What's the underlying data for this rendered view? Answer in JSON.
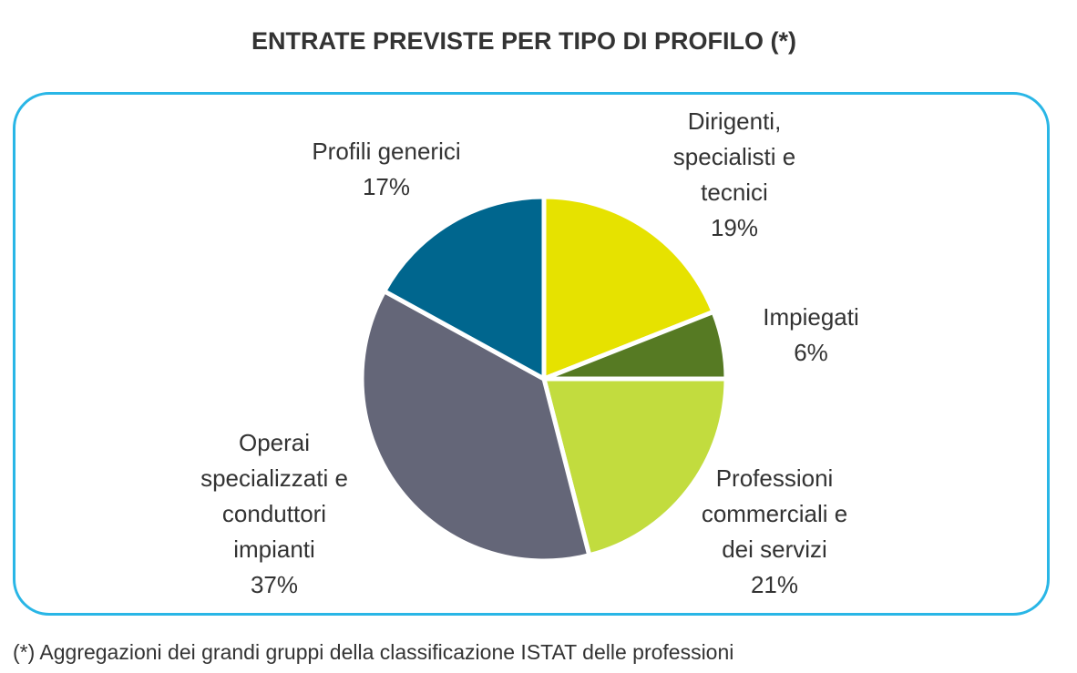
{
  "title": "ENTRATE PREVISTE PER TIPO DI PROFILO (*)",
  "footnote": "(*) Aggregazioni dei grandi gruppi della classificazione ISTAT delle professioni",
  "colors": {
    "border": "#29b6e6",
    "slice_separator": "#ffffff"
  },
  "chart_data": {
    "type": "pie",
    "title": "ENTRATE PREVISTE PER TIPO DI PROFILO (*)",
    "unit": "%",
    "slices": [
      {
        "label_lines": [
          "Dirigenti,",
          "specialisti e",
          "tecnici"
        ],
        "value": 19,
        "value_label": "19%",
        "color": "#e6e200"
      },
      {
        "label_lines": [
          "Impiegati"
        ],
        "value": 6,
        "value_label": "6%",
        "color": "#567a23"
      },
      {
        "label_lines": [
          "Professioni",
          "commerciali e",
          "dei servizi"
        ],
        "value": 21,
        "value_label": "21%",
        "color": "#c2dc3e"
      },
      {
        "label_lines": [
          "Operai",
          "specializzati e",
          "conduttori",
          "impianti"
        ],
        "value": 37,
        "value_label": "37%",
        "color": "#646678"
      },
      {
        "label_lines": [
          "Profili generici"
        ],
        "value": 17,
        "value_label": "17%",
        "color": "#00668e"
      }
    ]
  }
}
